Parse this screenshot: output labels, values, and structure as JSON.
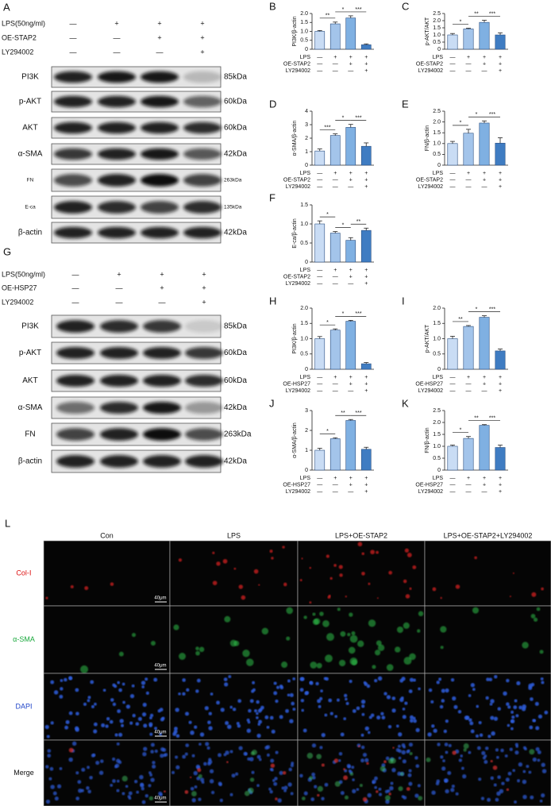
{
  "blot_A": {
    "label": "A",
    "conditions": [
      {
        "name": "LPS(50ng/ml)",
        "marks": [
          "—",
          "+",
          "+",
          "+"
        ]
      },
      {
        "name": "OE-STAP2",
        "marks": [
          "—",
          "—",
          "+",
          "+"
        ]
      },
      {
        "name": "LY294002",
        "marks": [
          "—",
          "—",
          "—",
          "+"
        ]
      }
    ],
    "proteins": [
      {
        "name": "PI3K",
        "size": "85kDa"
      },
      {
        "name": "p-AKT",
        "size": "60kDa"
      },
      {
        "name": "AKT",
        "size": "60kDa"
      },
      {
        "name": "α-SMA",
        "size": "42kDa"
      },
      {
        "name": "FN",
        "size": "263kDa"
      },
      {
        "name": "E-ca",
        "size": "135kDa"
      },
      {
        "name": "β-actin",
        "size": "42kDa"
      }
    ]
  },
  "blot_G": {
    "label": "G",
    "conditions": [
      {
        "name": "LPS(50ng/ml)",
        "marks": [
          "—",
          "+",
          "+",
          "+"
        ]
      },
      {
        "name": "OE-HSP27",
        "marks": [
          "—",
          "—",
          "+",
          "+"
        ]
      },
      {
        "name": "LY294002",
        "marks": [
          "—",
          "—",
          "—",
          "+"
        ]
      }
    ],
    "proteins": [
      {
        "name": "PI3K",
        "size": "85kDa"
      },
      {
        "name": "p-AKT",
        "size": "60kDa"
      },
      {
        "name": "AKT",
        "size": "60kDa"
      },
      {
        "name": "α-SMA",
        "size": "42kDa"
      },
      {
        "name": "FN",
        "size": "263kDa"
      },
      {
        "name": "β-actin",
        "size": "42kDa"
      }
    ]
  },
  "chart_data": [
    {
      "type": "bar",
      "label": "B",
      "ylabel": "PI3K/β-actin",
      "values": [
        1.0,
        1.42,
        1.75,
        0.25
      ],
      "errors": [
        0.05,
        0.1,
        0.12,
        0.05
      ],
      "colors": [
        "#c9dcf4",
        "#a3c4ea",
        "#7fb0e2",
        "#3f7cc2"
      ],
      "ylim": [
        0,
        2
      ],
      "yticks": [
        0,
        0.5,
        {
          "value": 1,
          "label": "1.0"
        },
        1.5,
        {
          "value": 2,
          "label": "2.0"
        }
      ],
      "significance": [
        "**",
        "*",
        "***"
      ],
      "conditions": [
        {
          "name": "LPS",
          "marks": [
            "—",
            "+",
            "+",
            "+"
          ]
        },
        {
          "name": "OE-STAP2",
          "marks": [
            "—",
            "—",
            "+",
            "+"
          ]
        },
        {
          "name": "LY294002",
          "marks": [
            "—",
            "—",
            "—",
            "+"
          ]
        }
      ]
    },
    {
      "type": "bar",
      "label": "C",
      "ylabel": "p-AKT/AKT",
      "values": [
        1.0,
        1.42,
        1.88,
        1.0
      ],
      "errors": [
        0.1,
        0.05,
        0.15,
        0.15
      ],
      "colors": [
        "#c9dcf4",
        "#a3c4ea",
        "#7fb0e2",
        "#3f7cc2"
      ],
      "ylim": [
        0,
        2.5
      ],
      "yticks": [
        0,
        0.5,
        {
          "value": 1,
          "label": "1.0"
        },
        1.5,
        {
          "value": 2,
          "label": "2.0"
        },
        2.5
      ],
      "significance": [
        "*",
        "**",
        "***"
      ],
      "conditions": [
        {
          "name": "LPS",
          "marks": [
            "—",
            "+",
            "+",
            "+"
          ]
        },
        {
          "name": "OE-STAP2",
          "marks": [
            "—",
            "—",
            "+",
            "+"
          ]
        },
        {
          "name": "LY294002",
          "marks": [
            "—",
            "—",
            "—",
            "+"
          ]
        }
      ]
    },
    {
      "type": "bar",
      "label": "D",
      "ylabel": "α-SMA/β-actin",
      "values": [
        1.05,
        2.2,
        2.8,
        1.4
      ],
      "errors": [
        0.15,
        0.12,
        0.22,
        0.25
      ],
      "colors": [
        "#c9dcf4",
        "#a3c4ea",
        "#7fb0e2",
        "#3f7cc2"
      ],
      "ylim": [
        0,
        4
      ],
      "yticks": [
        0,
        1,
        2,
        3,
        4
      ],
      "significance": [
        "***",
        "*",
        "***"
      ],
      "conditions": [
        {
          "name": "LPS",
          "marks": [
            "—",
            "+",
            "+",
            "+"
          ]
        },
        {
          "name": "OE-STAP2",
          "marks": [
            "—",
            "—",
            "+",
            "+"
          ]
        },
        {
          "name": "LY294002",
          "marks": [
            "—",
            "—",
            "—",
            "+"
          ]
        }
      ]
    },
    {
      "type": "bar",
      "label": "E",
      "ylabel": "FN/β-actin",
      "values": [
        1.0,
        1.48,
        1.95,
        1.02
      ],
      "errors": [
        0.1,
        0.18,
        0.1,
        0.25
      ],
      "colors": [
        "#c9dcf4",
        "#a3c4ea",
        "#7fb0e2",
        "#3f7cc2"
      ],
      "ylim": [
        0,
        2.5
      ],
      "yticks": [
        0,
        0.5,
        {
          "value": 1,
          "label": "1.0"
        },
        1.5,
        {
          "value": 2,
          "label": "2.0"
        },
        2.5
      ],
      "significance": [
        "*",
        "*",
        "***"
      ],
      "conditions": [
        {
          "name": "LPS",
          "marks": [
            "—",
            "+",
            "+",
            "+"
          ]
        },
        {
          "name": "OE-STAP2",
          "marks": [
            "—",
            "—",
            "+",
            "+"
          ]
        },
        {
          "name": "LY294002",
          "marks": [
            "—",
            "—",
            "—",
            "+"
          ]
        }
      ]
    },
    {
      "type": "bar",
      "label": "F",
      "ylabel": "E-ca/β-actin",
      "values": [
        1.0,
        0.76,
        0.57,
        0.83
      ],
      "errors": [
        0.08,
        0.04,
        0.07,
        0.06
      ],
      "colors": [
        "#c9dcf4",
        "#a3c4ea",
        "#7fb0e2",
        "#3f7cc2"
      ],
      "ylim": [
        0,
        1.5
      ],
      "yticks": [
        0,
        0.5,
        {
          "value": 1,
          "label": "1.0"
        },
        1.5
      ],
      "significance": [
        "*",
        "*",
        "**"
      ],
      "conditions": [
        {
          "name": "LPS",
          "marks": [
            "—",
            "+",
            "+",
            "+"
          ]
        },
        {
          "name": "OE-STAP2",
          "marks": [
            "—",
            "—",
            "+",
            "+"
          ]
        },
        {
          "name": "LY294002",
          "marks": [
            "—",
            "—",
            "—",
            "+"
          ]
        }
      ]
    },
    {
      "type": "bar",
      "label": "H",
      "ylabel": "PI3K/β-actin",
      "values": [
        1.0,
        1.28,
        1.57,
        0.18
      ],
      "errors": [
        0.07,
        0.04,
        0.03,
        0.04
      ],
      "colors": [
        "#c9dcf4",
        "#a3c4ea",
        "#7fb0e2",
        "#3f7cc2"
      ],
      "ylim": [
        0,
        2
      ],
      "yticks": [
        0,
        0.5,
        {
          "value": 1,
          "label": "1.0"
        },
        1.5,
        {
          "value": 2,
          "label": "2.0"
        }
      ],
      "significance": [
        "*",
        "*",
        "***"
      ],
      "conditions": [
        {
          "name": "LPS",
          "marks": [
            "—",
            "+",
            "+",
            "+"
          ]
        },
        {
          "name": "OE-HSP27",
          "marks": [
            "—",
            "—",
            "+",
            "+"
          ]
        },
        {
          "name": "LY294002",
          "marks": [
            "—",
            "—",
            "—",
            "+"
          ]
        }
      ]
    },
    {
      "type": "bar",
      "label": "I",
      "ylabel": "p-AKT/AKT",
      "values": [
        1.0,
        1.4,
        1.7,
        0.6
      ],
      "errors": [
        0.08,
        0.03,
        0.05,
        0.06
      ],
      "colors": [
        "#c9dcf4",
        "#a3c4ea",
        "#7fb0e2",
        "#3f7cc2"
      ],
      "ylim": [
        0,
        2
      ],
      "yticks": [
        0,
        0.5,
        {
          "value": 1,
          "label": "1.0"
        },
        1.5,
        {
          "value": 2,
          "label": "2.0"
        }
      ],
      "significance": [
        "**",
        "*",
        "***"
      ],
      "conditions": [
        {
          "name": "LPS",
          "marks": [
            "—",
            "+",
            "+",
            "+"
          ]
        },
        {
          "name": "OE-HSP27",
          "marks": [
            "—",
            "—",
            "+",
            "+"
          ]
        },
        {
          "name": "LY294002",
          "marks": [
            "—",
            "—",
            "—",
            "+"
          ]
        }
      ]
    },
    {
      "type": "bar",
      "label": "J",
      "ylabel": "α-SMA/β-actin",
      "values": [
        1.0,
        1.58,
        2.5,
        1.05
      ],
      "errors": [
        0.1,
        0.05,
        0.05,
        0.1
      ],
      "colors": [
        "#c9dcf4",
        "#a3c4ea",
        "#7fb0e2",
        "#3f7cc2"
      ],
      "ylim": [
        0,
        3
      ],
      "yticks": [
        0,
        1,
        2,
        3
      ],
      "significance": [
        "*",
        "**",
        "***"
      ],
      "conditions": [
        {
          "name": "LPS",
          "marks": [
            "—",
            "+",
            "+",
            "+"
          ]
        },
        {
          "name": "OE-HSP27",
          "marks": [
            "—",
            "—",
            "+",
            "+"
          ]
        },
        {
          "name": "LY294002",
          "marks": [
            "—",
            "—",
            "—",
            "+"
          ]
        }
      ]
    },
    {
      "type": "bar",
      "label": "K",
      "ylabel": "FN/β-actin",
      "values": [
        1.0,
        1.33,
        1.88,
        0.95
      ],
      "errors": [
        0.05,
        0.08,
        0.03,
        0.1
      ],
      "colors": [
        "#c9dcf4",
        "#a3c4ea",
        "#7fb0e2",
        "#3f7cc2"
      ],
      "ylim": [
        0,
        2.5
      ],
      "yticks": [
        0,
        0.5,
        {
          "value": 1,
          "label": "1.0"
        },
        1.5,
        {
          "value": 2,
          "label": "2.0"
        },
        2.5
      ],
      "significance": [
        "*",
        "**",
        "***"
      ],
      "conditions": [
        {
          "name": "LPS",
          "marks": [
            "—",
            "+",
            "+",
            "+"
          ]
        },
        {
          "name": "OE-HSP27",
          "marks": [
            "—",
            "—",
            "+",
            "+"
          ]
        },
        {
          "name": "LY294002",
          "marks": [
            "—",
            "—",
            "—",
            "+"
          ]
        }
      ]
    }
  ],
  "imaging": {
    "label": "L",
    "columns": [
      "Con",
      "LPS",
      "LPS+OE-STAP2",
      "LPS+OE-STAP2+LY294002"
    ],
    "rows": [
      "Col-Ⅰ",
      "α-SMA",
      "DAPI",
      "Merge"
    ],
    "scale_bar": "40μm"
  }
}
